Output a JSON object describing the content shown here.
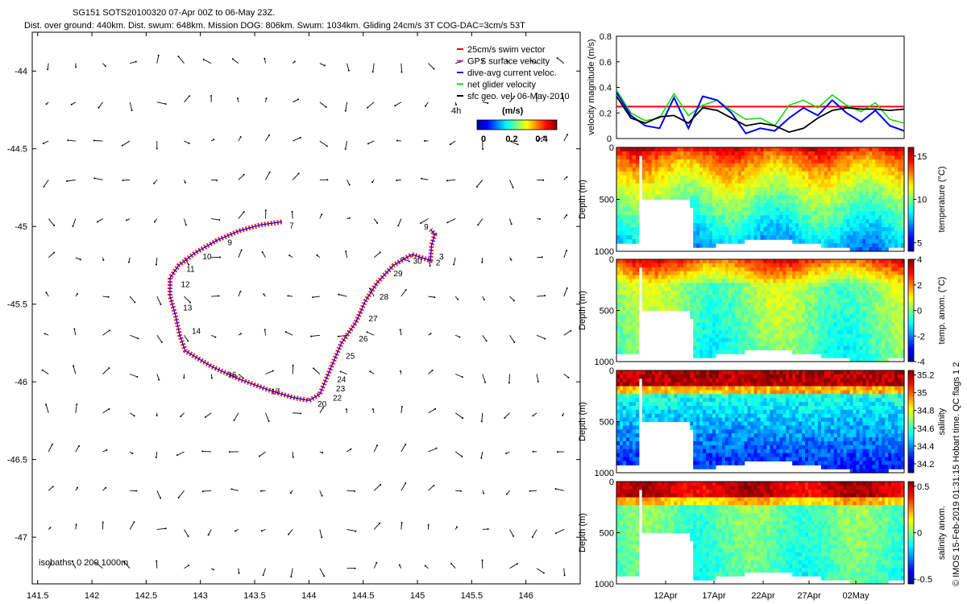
{
  "title_line1": "SG151 SOTS20100320 07-Apr 00Z to 06-May 23Z.",
  "title_line2": "Dist. over ground: 440km. Dist. swum: 648km. Mission DOG: 806km. Swum: 1034km. Gliding 24cm/s 3T COG-DAC=3cm/s 53T",
  "footer_credit": "© IMOS 15-Feb-2019 01:31:15 Hobart time. QC flags 1  2",
  "colors": {
    "swim": "#ff0000",
    "gps": "#cc33cc",
    "dac": "#0000ff",
    "net": "#00dd00",
    "sfc": "#000000",
    "track": "#ff2020",
    "hline": "#ff0000"
  },
  "chart_data": [
    {
      "type": "scatter",
      "name": "map",
      "xlim": [
        141.45,
        146.5
      ],
      "ylim": [
        -47.3,
        -43.75
      ],
      "xticks": [
        141.5,
        142,
        142.5,
        143,
        143.5,
        144,
        144.5,
        145,
        145.5,
        146
      ],
      "xtick_labels": [
        "141.5",
        "142",
        "142.5",
        "143",
        "143.5",
        "144",
        "144.5",
        "145",
        "145.5",
        "146"
      ],
      "yticks": [
        -44,
        -44.5,
        -45,
        -45.5,
        -46,
        -46.5,
        -47
      ],
      "ytick_labels": [
        "-44",
        "-44.5",
        "-45",
        "-45.5",
        "-46",
        "-46.5",
        "-47"
      ],
      "legend": {
        "placement": "top-right",
        "entries": [
          "25cm/s swim vector",
          "GPS surface velocity",
          "dive-avg current veloc.",
          "net glider velocity",
          "sfc geo. vel. 06-May-2010"
        ],
        "time_label": "4h",
        "colorbar_unit": "(m/s)",
        "colorbar_ticks": [
          "0",
          "0.2",
          "0.4"
        ]
      },
      "isobaths_label": "isobaths: 0  200  1000m",
      "track": [
        [
          143.75,
          -44.97
        ],
        [
          143.55,
          -44.99
        ],
        [
          143.35,
          -45.03
        ],
        [
          143.15,
          -45.09
        ],
        [
          142.95,
          -45.17
        ],
        [
          142.8,
          -45.25
        ],
        [
          142.72,
          -45.33
        ],
        [
          142.72,
          -45.45
        ],
        [
          142.77,
          -45.57
        ],
        [
          142.81,
          -45.7
        ],
        [
          142.86,
          -45.8
        ],
        [
          143.1,
          -45.9
        ],
        [
          143.35,
          -45.98
        ],
        [
          143.62,
          -46.05
        ],
        [
          143.85,
          -46.1
        ],
        [
          144.0,
          -46.12
        ],
        [
          144.1,
          -46.08
        ],
        [
          144.16,
          -45.98
        ],
        [
          144.22,
          -45.88
        ],
        [
          144.3,
          -45.75
        ],
        [
          144.43,
          -45.62
        ],
        [
          144.52,
          -45.48
        ],
        [
          144.63,
          -45.36
        ],
        [
          144.78,
          -45.25
        ],
        [
          144.95,
          -45.18
        ],
        [
          145.12,
          -45.22
        ],
        [
          145.13,
          -45.12
        ],
        [
          145.16,
          -45.05
        ],
        [
          145.12,
          -45.02
        ]
      ],
      "dive_labels": [
        {
          "t": "7",
          "lon": 143.82,
          "lat": -44.99
        },
        {
          "t": "9",
          "lon": 143.25,
          "lat": -45.1
        },
        {
          "t": "10",
          "lon": 143.02,
          "lat": -45.19
        },
        {
          "t": "11",
          "lon": 142.87,
          "lat": -45.27
        },
        {
          "t": "12",
          "lon": 142.82,
          "lat": -45.37
        },
        {
          "t": "13",
          "lon": 142.84,
          "lat": -45.52
        },
        {
          "t": "14",
          "lon": 142.92,
          "lat": -45.67
        },
        {
          "t": "16",
          "lon": 143.25,
          "lat": -45.95
        },
        {
          "t": "17",
          "lon": 143.65,
          "lat": -46.06
        },
        {
          "t": "20",
          "lon": 144.08,
          "lat": -46.14
        },
        {
          "t": "22",
          "lon": 144.22,
          "lat": -46.1
        },
        {
          "t": "23",
          "lon": 144.25,
          "lat": -46.04
        },
        {
          "t": "24",
          "lon": 144.26,
          "lat": -45.98
        },
        {
          "t": "25",
          "lon": 144.34,
          "lat": -45.83
        },
        {
          "t": "26",
          "lon": 144.46,
          "lat": -45.72
        },
        {
          "t": "27",
          "lon": 144.55,
          "lat": -45.59
        },
        {
          "t": "28",
          "lon": 144.65,
          "lat": -45.45
        },
        {
          "t": "29",
          "lon": 144.78,
          "lat": -45.3
        },
        {
          "t": "30",
          "lon": 144.96,
          "lat": -45.22
        },
        {
          "t": "9",
          "lon": 145.06,
          "lat": -45.0
        },
        {
          "t": "3",
          "lon": 145.2,
          "lat": -45.19
        },
        {
          "t": "2",
          "lon": 145.17,
          "lat": -45.23
        }
      ]
    },
    {
      "type": "line",
      "name": "velocity",
      "ylabel": "velocity magnitude (m/s)",
      "ylim": [
        0,
        0.8
      ],
      "yticks": [
        "0",
        "0.2",
        "0.4",
        "0.6",
        "0.8"
      ],
      "x_days": [
        0,
        1.5,
        3,
        4.5,
        6,
        7.5,
        9,
        10.5,
        12,
        13.5,
        15,
        16.5,
        18,
        19.5,
        21,
        22.5,
        24,
        25.5,
        27,
        28.5,
        30
      ],
      "series": [
        {
          "name": "net glider velocity",
          "values": [
            0.38,
            0.2,
            0.14,
            0.16,
            0.35,
            0.18,
            0.26,
            0.3,
            0.22,
            0.15,
            0.16,
            0.1,
            0.26,
            0.3,
            0.24,
            0.34,
            0.26,
            0.21,
            0.28,
            0.15,
            0.12
          ]
        },
        {
          "name": "dive-avg current veloc.",
          "values": [
            0.36,
            0.18,
            0.1,
            0.08,
            0.32,
            0.08,
            0.33,
            0.3,
            0.2,
            0.04,
            0.08,
            0.06,
            0.16,
            0.24,
            0.18,
            0.3,
            0.2,
            0.13,
            0.22,
            0.1,
            0.06
          ]
        },
        {
          "name": "sfc geo. vel.",
          "values": [
            0.33,
            0.16,
            0.12,
            0.17,
            0.18,
            0.12,
            0.24,
            0.22,
            0.16,
            0.1,
            0.12,
            0.1,
            0.05,
            0.08,
            0.16,
            0.22,
            0.24,
            0.23,
            0.23,
            0.22,
            0.23
          ]
        }
      ],
      "hline": 0.25
    },
    {
      "type": "heatmap",
      "name": "temperature",
      "ylabel": "Depth (m)",
      "yticks": [
        "0",
        "500",
        "1000"
      ],
      "cbar_label": "temperature (°C)",
      "cbar_ticks": [
        "15",
        "10",
        "5"
      ],
      "cbar_min": 4,
      "cbar_max": 16
    },
    {
      "type": "heatmap",
      "name": "temp. anom.",
      "ylabel": "Depth (m)",
      "yticks": [
        "0",
        "500",
        "1000"
      ],
      "cbar_label": "temp. anom. (°C)",
      "cbar_ticks": [
        "4",
        "2",
        "0",
        "-2",
        "-4"
      ],
      "cbar_min": -4,
      "cbar_max": 4
    },
    {
      "type": "heatmap",
      "name": "salinity",
      "ylabel": "Depth (m)",
      "yticks": [
        "0",
        "500",
        "1000"
      ],
      "cbar_label": "salinity",
      "cbar_ticks": [
        "35.2",
        "35",
        "34.8",
        "34.6",
        "34.4",
        "34.2"
      ],
      "cbar_min": 34.1,
      "cbar_max": 35.25
    },
    {
      "type": "heatmap",
      "name": "salinity anom.",
      "ylabel": "Depth (m)",
      "yticks": [
        "0",
        "500",
        "1000"
      ],
      "cbar_label": "salinity anom.",
      "cbar_ticks": [
        "0.5",
        "0",
        "-0.5"
      ],
      "cbar_min": -0.55,
      "cbar_max": 0.55,
      "xtick_labels": [
        "12Apr",
        "17Apr",
        "22Apr",
        "27Apr",
        "02May"
      ]
    }
  ]
}
